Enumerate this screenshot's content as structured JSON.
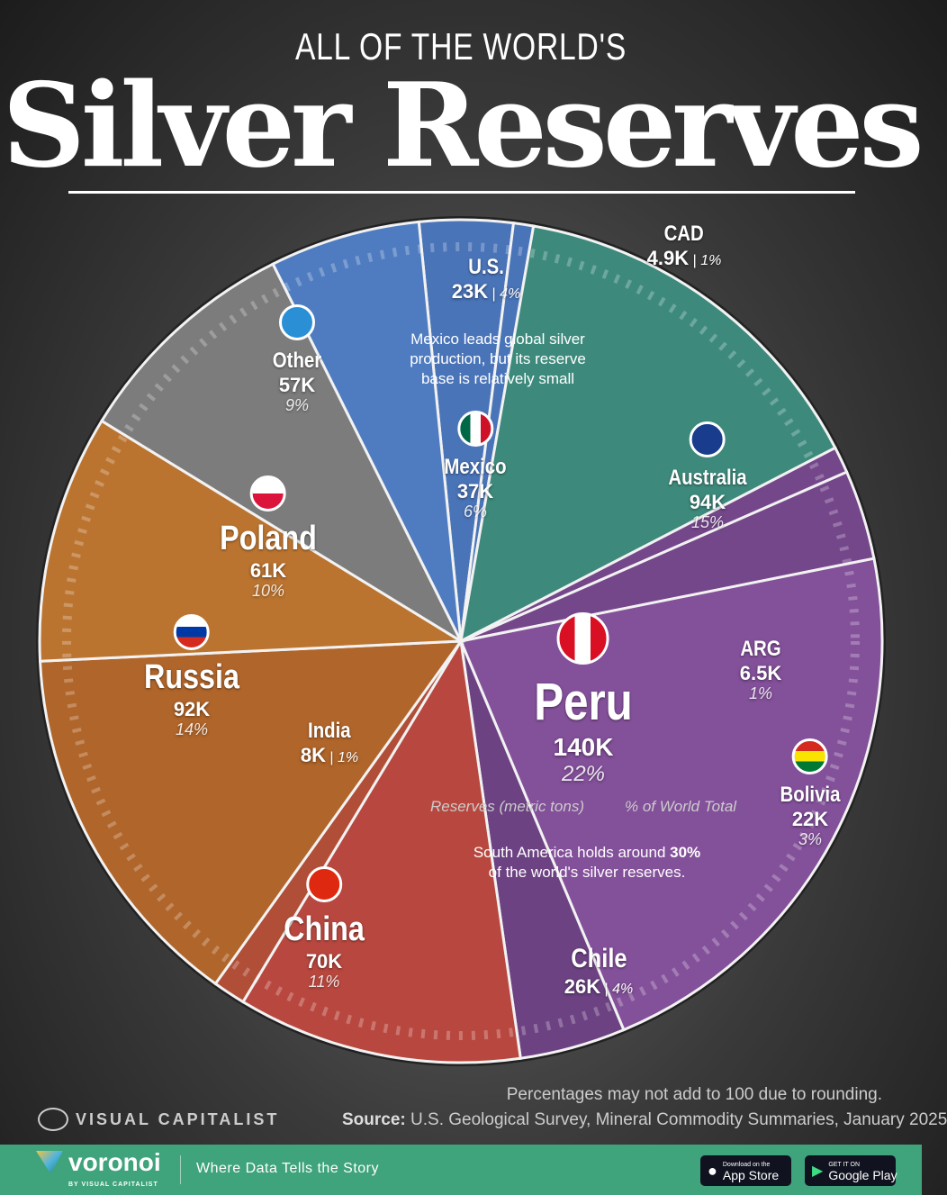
{
  "header": {
    "kicker": "ALL OF THE WORLD'S",
    "title": "Silver Reserves"
  },
  "chart_data": {
    "type": "pie",
    "title": "All of the World's Silver Reserves",
    "unit": "metric tons",
    "slices": [
      {
        "name": "U.S.",
        "value": 23000,
        "value_label": "23K",
        "pct": "4%",
        "color": "#4a74b8"
      },
      {
        "name": "CAD",
        "value": 4900,
        "value_label": "4.9K",
        "pct": "1%",
        "color": "#4a74b8"
      },
      {
        "name": "Australia",
        "value": 94000,
        "value_label": "94K",
        "pct": "15%",
        "color": "#3d8a7c"
      },
      {
        "name": "ARG",
        "value": 6500,
        "value_label": "6.5K",
        "pct": "1%",
        "color": "#74468a"
      },
      {
        "name": "Bolivia",
        "value": 22000,
        "value_label": "22K",
        "pct": "3%",
        "color": "#74468a"
      },
      {
        "name": "Peru",
        "value": 140000,
        "value_label": "140K",
        "pct": "22%",
        "color": "#83509a"
      },
      {
        "name": "Chile",
        "value": 26000,
        "value_label": "26K",
        "pct": "4%",
        "color": "#6c4282"
      },
      {
        "name": "China",
        "value": 70000,
        "value_label": "70K",
        "pct": "11%",
        "color": "#b8483f"
      },
      {
        "name": "India",
        "value": 8000,
        "value_label": "8K",
        "pct": "1%",
        "color": "#b14e38"
      },
      {
        "name": "Russia",
        "value": 92000,
        "value_label": "92K",
        "pct": "14%",
        "color": "#b0652a"
      },
      {
        "name": "Poland",
        "value": 61000,
        "value_label": "61K",
        "pct": "10%",
        "color": "#bb7430"
      },
      {
        "name": "Other",
        "value": 57000,
        "value_label": "57K",
        "pct": "9%",
        "color": "#7c7c7c"
      },
      {
        "name": "Mexico",
        "value": 37000,
        "value_label": "37K",
        "pct": "6%",
        "color": "#4f7cc0"
      }
    ]
  },
  "annotations": {
    "mexico_note": "Mexico leads global silver production, but its reserve base is relatively small",
    "sa_note_pre": "South America holds around ",
    "sa_note_bold": "30%",
    "sa_note_post": " of the world's silver reserves.",
    "legend_reserves": "Reserves (metric tons)",
    "legend_pct": "% of World Total"
  },
  "footer": {
    "rounding": "Percentages may not add to 100 due to rounding.",
    "source_label": "Source:",
    "source": "U.S. Geological Survey, Mineral Commodity Summaries, January 2025",
    "brand": "VISUAL CAPITALIST"
  },
  "bar": {
    "brand": "voronoi",
    "brand_by": "BY VISUAL CAPITALIST",
    "tagline": "Where Data Tells the Story",
    "app_store_small": "Download on the",
    "app_store": "App Store",
    "google_small": "GET IT ON",
    "google": "Google Play"
  }
}
